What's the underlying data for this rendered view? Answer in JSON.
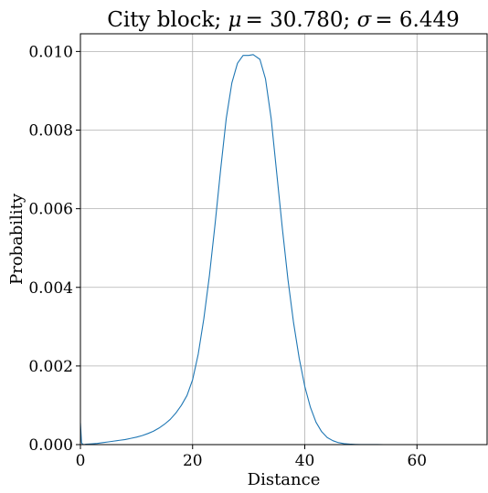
{
  "chart_data": {
    "type": "line",
    "title_parts": {
      "prefix": "City block; ",
      "mu_symbol": "μ",
      "mu_value": "= 30.780; ",
      "sigma_symbol": "σ",
      "sigma_value": "= 6.449"
    },
    "title": "City block; μ = 30.780; σ = 6.449",
    "xlabel": "Distance",
    "ylabel": "Probability",
    "xlim": [
      0,
      72.5
    ],
    "ylim": [
      0,
      0.01045
    ],
    "xticks": [
      0,
      20,
      40,
      60
    ],
    "xtick_labels": [
      "0",
      "20",
      "40",
      "60"
    ],
    "yticks": [
      0.0,
      0.002,
      0.004,
      0.006,
      0.008,
      0.01
    ],
    "ytick_labels": [
      "0.000",
      "0.002",
      "0.004",
      "0.006",
      "0.008",
      "0.010"
    ],
    "grid": true,
    "series": [
      {
        "color": "#1f77b4",
        "x": [
          0,
          0.2,
          0.4,
          0.6,
          1,
          2,
          3,
          4,
          5,
          6,
          7,
          8,
          9,
          10,
          11,
          12,
          13,
          14,
          15,
          16,
          17,
          18,
          19,
          20,
          21,
          22,
          23,
          24,
          25,
          26,
          27,
          28,
          29,
          30,
          30.8,
          31,
          32,
          33,
          34,
          35,
          36,
          37,
          38,
          39,
          40,
          41,
          42,
          43,
          44,
          45,
          46,
          47,
          48,
          49,
          50,
          51,
          52,
          53,
          54,
          55,
          56,
          57,
          58,
          59,
          60,
          62,
          64,
          66,
          68,
          70,
          72
        ],
        "y": [
          0.00055,
          5e-05,
          1e-05,
          0.0,
          1e-05,
          2e-05,
          3e-05,
          5e-05,
          7e-05,
          9e-05,
          0.00011,
          0.00013,
          0.00016,
          0.00019,
          0.00023,
          0.00028,
          0.00034,
          0.00042,
          0.00052,
          0.00064,
          0.0008,
          0.001,
          0.00125,
          0.00165,
          0.0023,
          0.0032,
          0.0043,
          0.0056,
          0.007,
          0.0083,
          0.0092,
          0.0097,
          0.0099,
          0.0099,
          0.00992,
          0.0099,
          0.0098,
          0.0093,
          0.0083,
          0.0069,
          0.0055,
          0.0042,
          0.0031,
          0.0022,
          0.00148,
          0.00095,
          0.00057,
          0.00033,
          0.00018,
          0.0001,
          5e-05,
          2.5e-05,
          1.2e-05,
          6e-06,
          3e-06,
          2e-06,
          1e-06,
          1e-06,
          0.0,
          0.0,
          0.0,
          0.0,
          0.0,
          0.0,
          0.0,
          0.0,
          0.0,
          0.0,
          0.0,
          0.0,
          0.0
        ]
      }
    ]
  }
}
